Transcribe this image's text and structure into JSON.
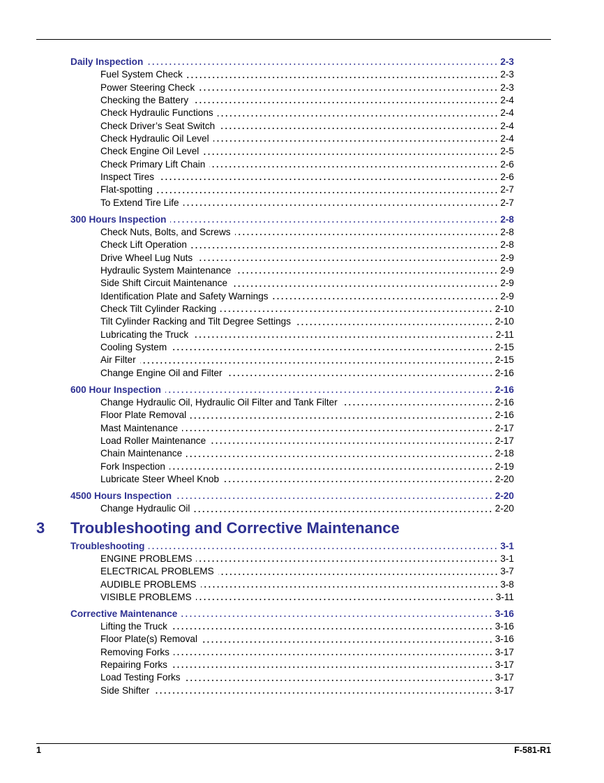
{
  "toc_before": [
    {
      "level": "section",
      "label": "Daily Inspection",
      "page": "2-3"
    },
    {
      "level": "sub",
      "label": "Fuel System Check",
      "page": "2-3"
    },
    {
      "level": "sub",
      "label": "Power Steering Check",
      "page": "2-3"
    },
    {
      "level": "sub",
      "label": "Checking the Battery",
      "page": "2-4"
    },
    {
      "level": "sub",
      "label": "Check Hydraulic Functions",
      "page": "2-4"
    },
    {
      "level": "sub",
      "label": "Check Driver’s Seat Switch",
      "page": "2-4"
    },
    {
      "level": "sub",
      "label": "Check Hydraulic Oil Level",
      "page": "2-4"
    },
    {
      "level": "sub",
      "label": "Check Engine Oil Level",
      "page": "2-5"
    },
    {
      "level": "sub",
      "label": "Check Primary Lift Chain",
      "page": "2-6"
    },
    {
      "level": "sub",
      "label": "Inspect Tires",
      "page": "2-6"
    },
    {
      "level": "sub",
      "label": "Flat-spotting",
      "page": "2-7"
    },
    {
      "level": "sub",
      "label": "To Extend Tire Life",
      "page": "2-7"
    },
    {
      "level": "section",
      "label": "300 Hours Inspection",
      "page": "2-8"
    },
    {
      "level": "sub",
      "label": "Check Nuts, Bolts, and Screws",
      "page": "2-8"
    },
    {
      "level": "sub",
      "label": "Check Lift Operation",
      "page": "2-8"
    },
    {
      "level": "sub",
      "label": "Drive Wheel Lug Nuts",
      "page": "2-9"
    },
    {
      "level": "sub",
      "label": "Hydraulic System Maintenance",
      "page": "2-9"
    },
    {
      "level": "sub",
      "label": "Side Shift Circuit Maintenance",
      "page": "2-9"
    },
    {
      "level": "sub",
      "label": "Identification Plate and Safety Warnings",
      "page": "2-9"
    },
    {
      "level": "sub",
      "label": "Check Tilt Cylinder Racking",
      "page": "2-10"
    },
    {
      "level": "sub",
      "label": "Tilt Cylinder Racking and Tilt Degree Settings",
      "page": "2-10"
    },
    {
      "level": "sub",
      "label": "Lubricating the Truck",
      "page": "2-11"
    },
    {
      "level": "sub",
      "label": "Cooling System",
      "page": "2-15"
    },
    {
      "level": "sub",
      "label": "Air Filter",
      "page": "2-15"
    },
    {
      "level": "sub",
      "label": "Change Engine Oil and Filter",
      "page": "2-16"
    },
    {
      "level": "section",
      "label": "600 Hour Inspection",
      "page": "2-16"
    },
    {
      "level": "sub",
      "label": "Change Hydraulic Oil, Hydraulic Oil Filter and Tank Filter",
      "page": "2-16"
    },
    {
      "level": "sub",
      "label": "Floor Plate Removal",
      "page": "2-16"
    },
    {
      "level": "sub",
      "label": "Mast Maintenance",
      "page": "2-17"
    },
    {
      "level": "sub",
      "label": "Load Roller Maintenance",
      "page": "2-17"
    },
    {
      "level": "sub",
      "label": "Chain Maintenance",
      "page": "2-18"
    },
    {
      "level": "sub",
      "label": "Fork Inspection",
      "page": "2-19"
    },
    {
      "level": "sub",
      "label": "Lubricate Steer Wheel Knob",
      "page": "2-20"
    },
    {
      "level": "section",
      "label": "4500 Hours Inspection",
      "page": "2-20"
    },
    {
      "level": "sub",
      "label": "Change Hydraulic Oil",
      "page": "2-20"
    }
  ],
  "chapter": {
    "number": "3",
    "title": "Troubleshooting and Corrective Maintenance"
  },
  "toc_after": [
    {
      "level": "section",
      "label": "Troubleshooting",
      "page": "3-1"
    },
    {
      "level": "sub",
      "label": "ENGINE PROBLEMS",
      "page": "3-1"
    },
    {
      "level": "sub",
      "label": "ELECTRICAL PROBLEMS",
      "page": "3-7"
    },
    {
      "level": "sub",
      "label": "AUDIBLE PROBLEMS",
      "page": "3-8"
    },
    {
      "level": "sub",
      "label": "VISIBLE PROBLEMS",
      "page": "3-11"
    },
    {
      "level": "section",
      "label": "Corrective Maintenance",
      "page": "3-16"
    },
    {
      "level": "sub",
      "label": "Lifting the Truck",
      "page": "3-16"
    },
    {
      "level": "sub",
      "label": "Floor Plate(s) Removal",
      "page": "3-16"
    },
    {
      "level": "sub",
      "label": "Removing Forks",
      "page": "3-17"
    },
    {
      "level": "sub",
      "label": "Repairing Forks",
      "page": "3-17"
    },
    {
      "level": "sub",
      "label": "Load Testing Forks",
      "page": "3-17"
    },
    {
      "level": "sub",
      "label": "Side Shifter",
      "page": "3-17"
    }
  ],
  "footer": {
    "page_number": "1",
    "doc_id": "F-581-R1"
  },
  "colors": {
    "heading": "#2e3192",
    "text": "#000000"
  }
}
